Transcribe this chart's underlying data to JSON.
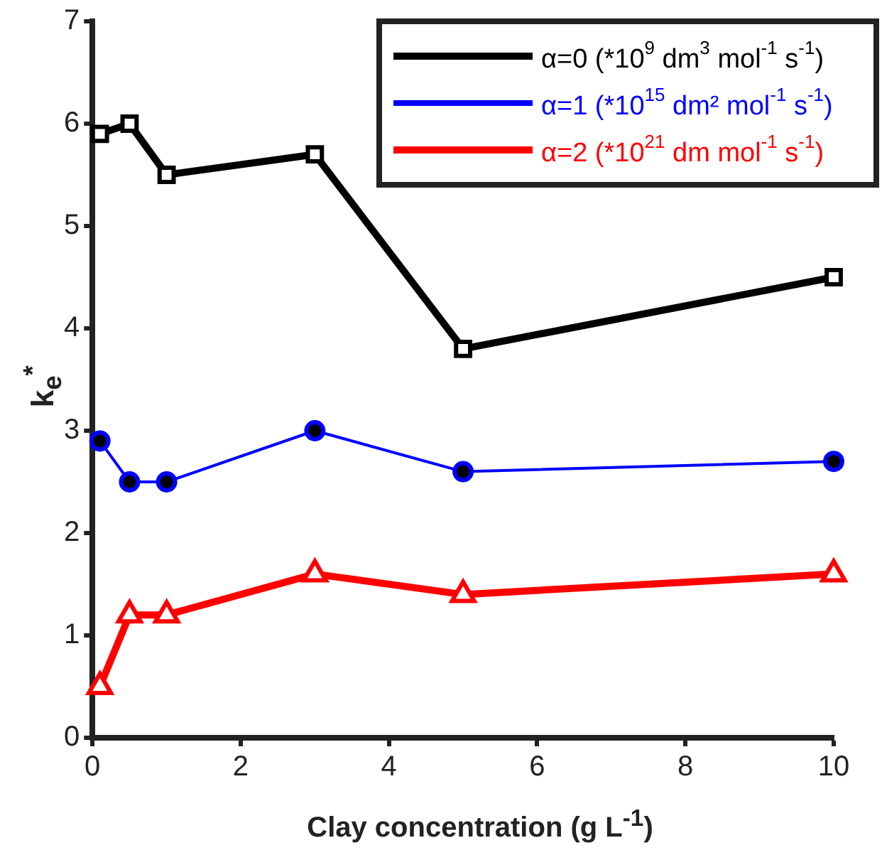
{
  "chart_data": {
    "type": "line",
    "xlabel": "Clay concentration (g L$^{-1}$)",
    "ylabel": "k$_{e}$$^{*}$",
    "x": [
      0.1,
      0.5,
      1,
      3,
      5,
      10
    ],
    "series": [
      {
        "name": "α=0 (*10$^{9}$ dm$^{3}$ mol$^{-1}$ s$^{-1}$)",
        "color": "#000000",
        "marker": "square",
        "values": [
          5.9,
          6.0,
          5.5,
          5.7,
          3.8,
          4.5
        ]
      },
      {
        "name": "α=1 (*10$^{15}$ dm² mol$^{-1}$ s$^{-1}$)",
        "color": "#0000ff",
        "marker": "circle",
        "values": [
          2.9,
          2.5,
          2.5,
          3.0,
          2.6,
          2.7
        ]
      },
      {
        "name": "α=2 (*10$^{21}$ dm mol$^{-1}$ s$^{-1}$)",
        "color": "#ff0000",
        "marker": "triangle",
        "values": [
          0.5,
          1.2,
          1.2,
          1.6,
          1.4,
          1.6
        ]
      }
    ],
    "xlim": [
      0,
      10
    ],
    "xticks": [
      0,
      2,
      4,
      6,
      8,
      10
    ],
    "ylim": [
      0,
      7
    ],
    "yticks": [
      0,
      1,
      2,
      3,
      4,
      5,
      6,
      7
    ],
    "grid": false,
    "legend": "top right",
    "line_style": "solid"
  }
}
